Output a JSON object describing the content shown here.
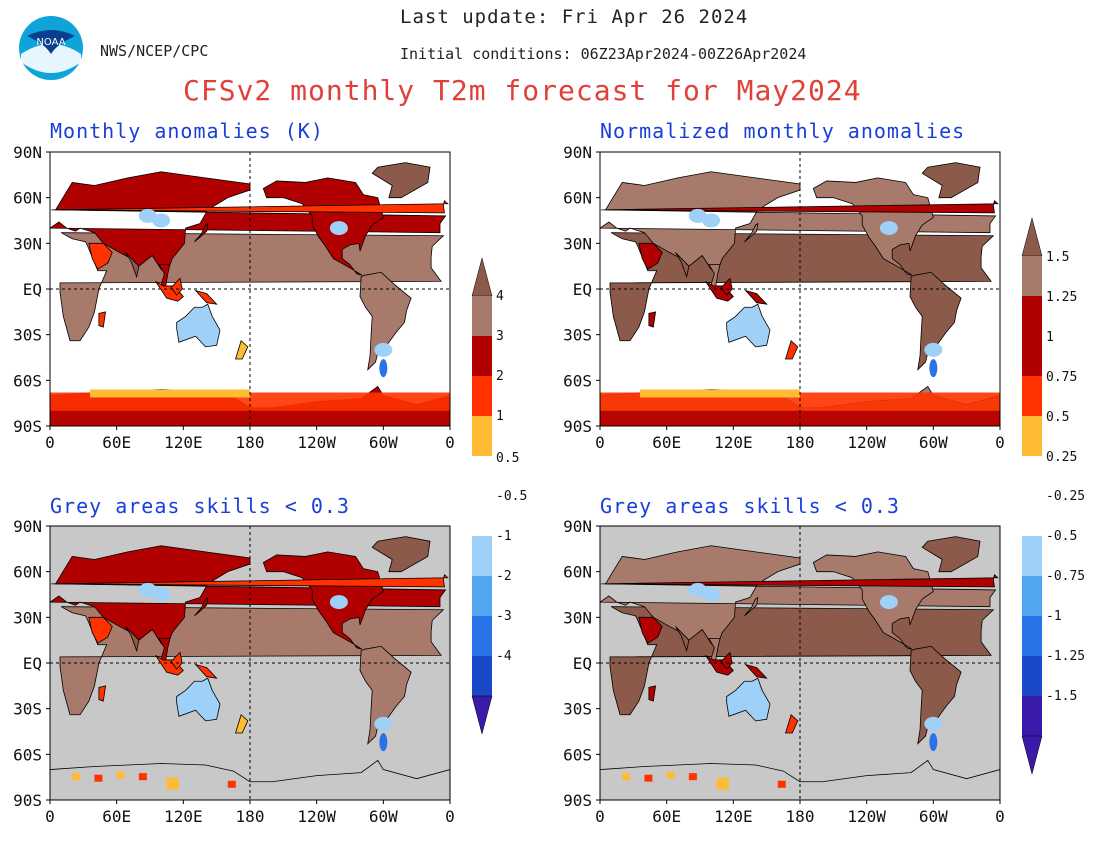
{
  "header": {
    "last_update": "Last update: Fri Apr 26 2024",
    "agency": "NWS/NCEP/CPC",
    "initial_conditions": "Initial conditions: 06Z23Apr2024-00Z26Apr2024",
    "title": "CFSv2 monthly T2m forecast for May2024",
    "logo_text": "NOAA"
  },
  "panels": [
    {
      "id": "p1",
      "title": "Monthly anomalies (K)",
      "masked": false,
      "normalized": false
    },
    {
      "id": "p2",
      "title": "Normalized monthly anomalies",
      "masked": false,
      "normalized": true
    },
    {
      "id": "p3",
      "title": "Grey areas skills < 0.3",
      "masked": true,
      "normalized": false
    },
    {
      "id": "p4",
      "title": "Grey areas skills < 0.3",
      "masked": true,
      "normalized": true
    }
  ],
  "axes": {
    "lat_labels": [
      "90N",
      "60N",
      "30N",
      "EQ",
      "30S",
      "60S",
      "90S"
    ],
    "lon_labels": [
      "0",
      "60E",
      "120E",
      "180",
      "120W",
      "60W",
      "0"
    ]
  },
  "colorbars": [
    {
      "id": "anom",
      "labels": [
        "4",
        "3",
        "2",
        "1",
        "0.5",
        "-0.5",
        "-1",
        "-2",
        "-3",
        "-4"
      ]
    },
    {
      "id": "norm",
      "labels": [
        "1.5",
        "1.25",
        "1",
        "0.75",
        "0.5",
        "0.25",
        "-0.25",
        "-0.5",
        "-0.75",
        "-1",
        "-1.25",
        "-1.5"
      ]
    }
  ],
  "palette": {
    "warm": [
      "#8c5a4a",
      "#a87a6c",
      "#b00000",
      "#ff3200",
      "#ffbb33"
    ],
    "neutral": "#ffffff",
    "cool": [
      "#9ed0f8",
      "#52a6f0",
      "#2a72e8",
      "#1a48c8",
      "#3a1aa8"
    ],
    "grey_mask": "#c8c8c8",
    "title_red": "#e0403a",
    "title_blue": "#1a3fd8"
  }
}
